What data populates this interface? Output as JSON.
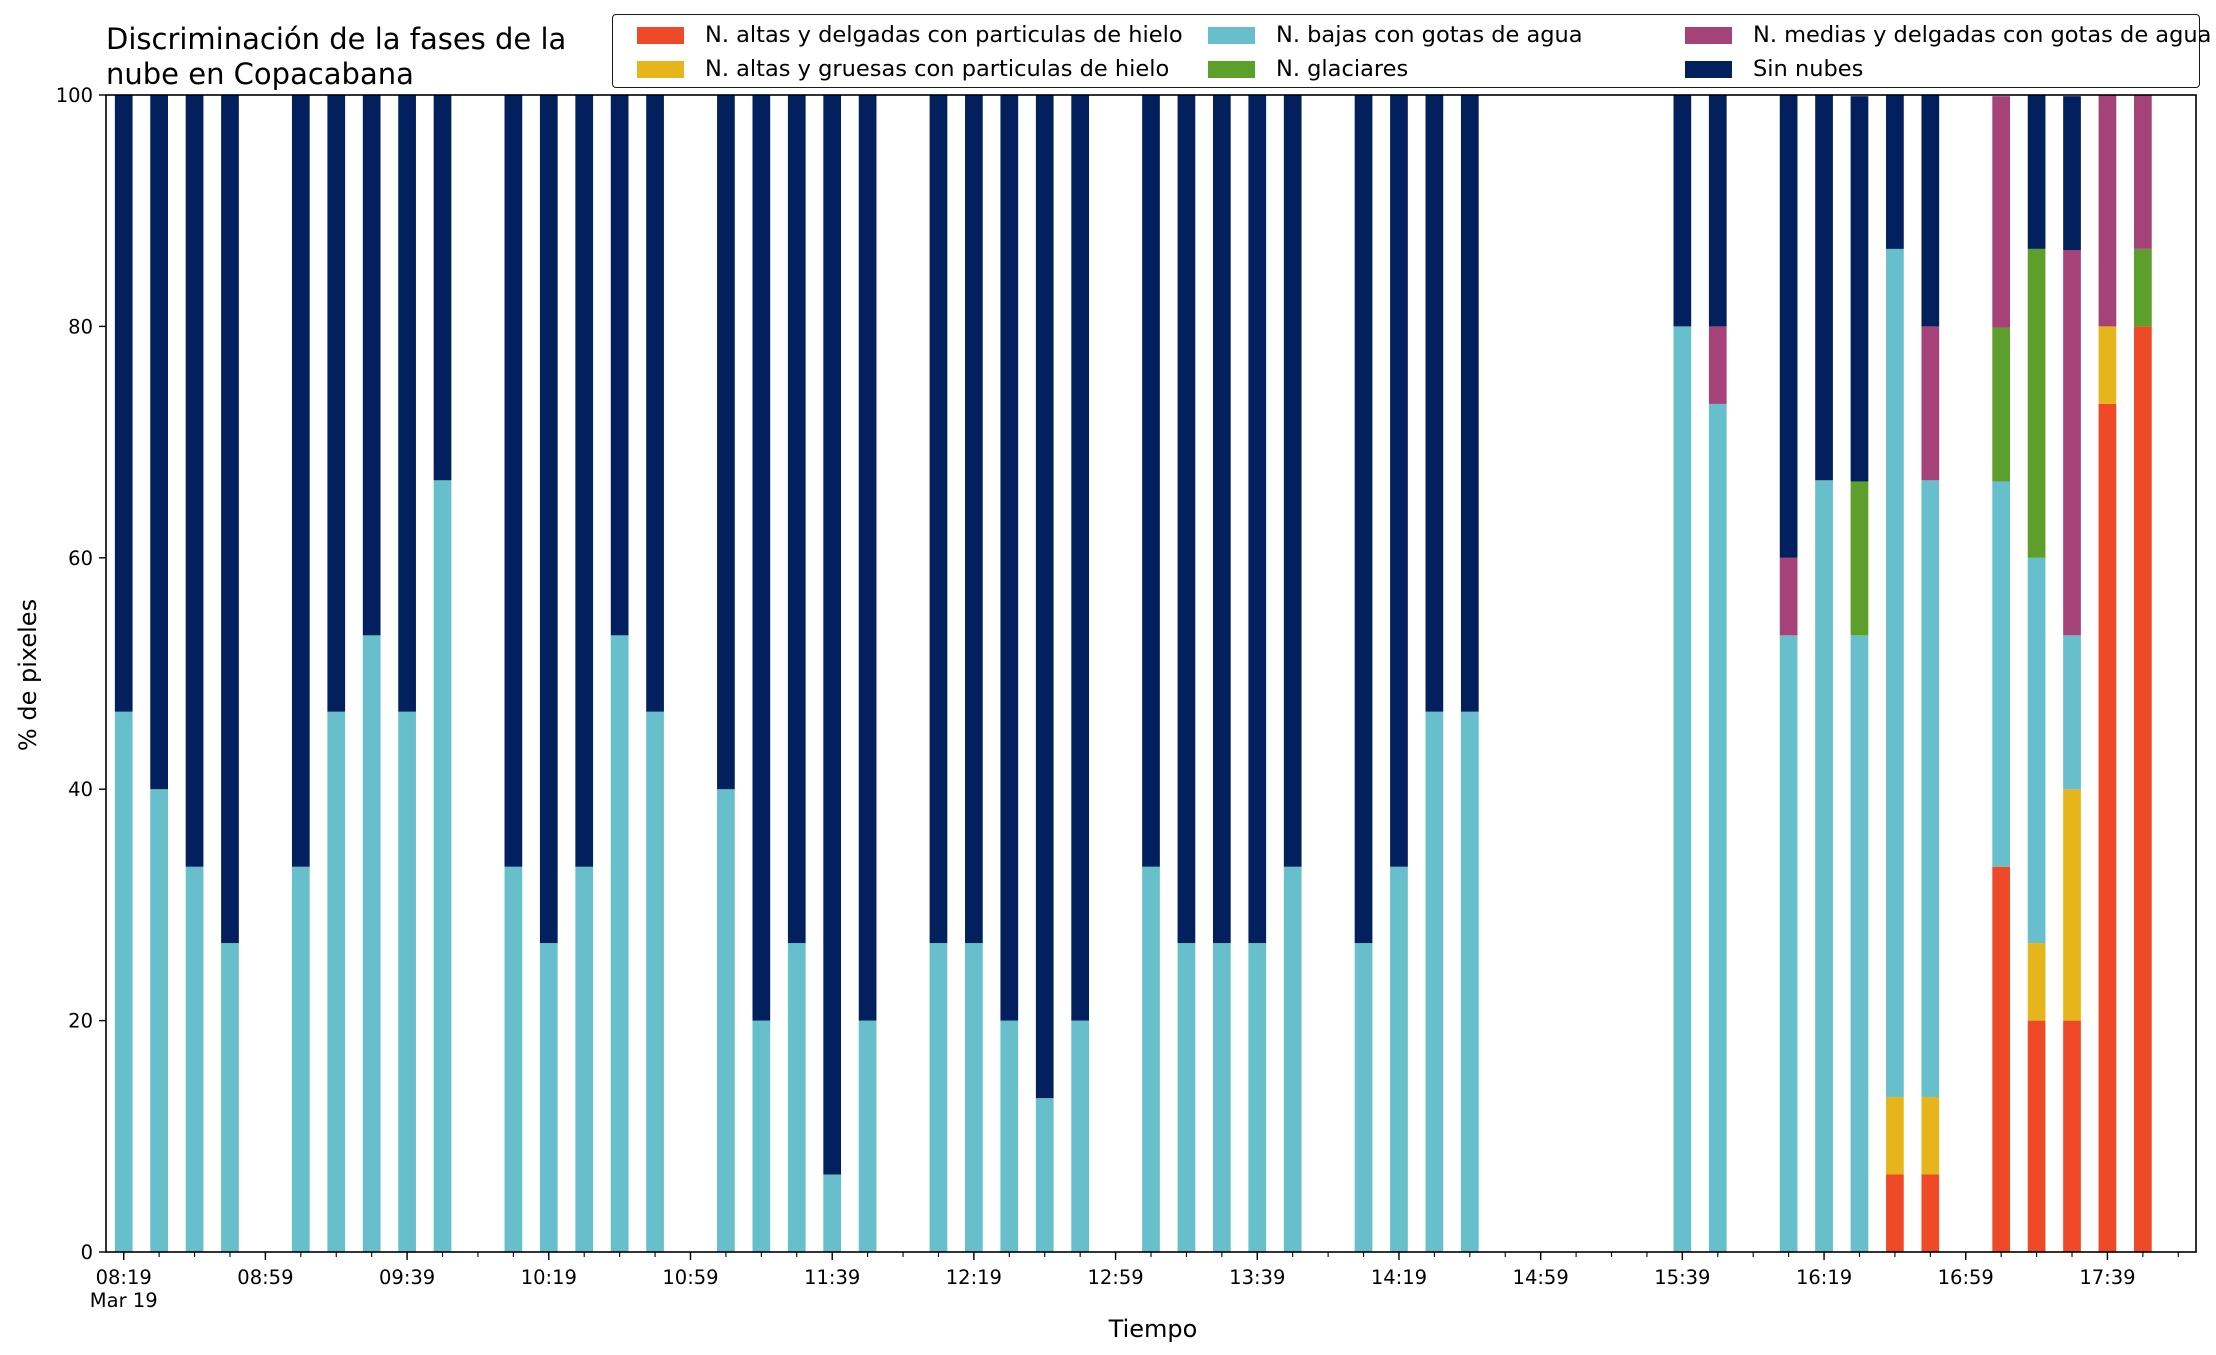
{
  "chart_data": {
    "type": "bar",
    "stacked": true,
    "title": "Discriminación de la fases de la nube en Copacabana",
    "xlabel": "Tiempo",
    "ylabel": "% de pixeles",
    "ylim": [
      0,
      100
    ],
    "yticks": [
      0,
      20,
      40,
      60,
      80,
      100
    ],
    "grid": false,
    "legend_position": "top-right, 3 columns",
    "x_start": "08:19",
    "x_end": "17:59",
    "bar_interval_minutes": 10,
    "xtick_labels": [
      "08:19",
      "08:59",
      "09:39",
      "10:19",
      "10:59",
      "11:39",
      "12:19",
      "12:59",
      "13:39",
      "14:19",
      "14:59",
      "15:39",
      "16:19",
      "16:59",
      "17:39"
    ],
    "xtick_date_label": "Mar 19",
    "categories": [
      "08:19",
      "08:29",
      "08:39",
      "08:49",
      "08:59",
      "09:09",
      "09:19",
      "09:29",
      "09:39",
      "09:49",
      "09:59",
      "10:09",
      "10:19",
      "10:29",
      "10:39",
      "10:49",
      "10:59",
      "11:09",
      "11:19",
      "11:29",
      "11:39",
      "11:49",
      "11:59",
      "12:09",
      "12:19",
      "12:29",
      "12:39",
      "12:49",
      "12:59",
      "13:09",
      "13:19",
      "13:29",
      "13:39",
      "13:49",
      "13:59",
      "14:09",
      "14:19",
      "14:29",
      "14:39",
      "14:49",
      "14:59",
      "15:09",
      "15:19",
      "15:29",
      "15:39",
      "15:49",
      "15:59",
      "16:09",
      "16:19",
      "16:29",
      "16:39",
      "16:49",
      "16:59",
      "17:09",
      "17:19",
      "17:29",
      "17:39",
      "17:49"
    ],
    "series": [
      {
        "name": "N. altas y delgadas con particulas de hielo",
        "color": "#ef4a28",
        "values": [
          0,
          0,
          0,
          0,
          null,
          0,
          0,
          0,
          0,
          0,
          null,
          0,
          0,
          0,
          0,
          0,
          null,
          0,
          0,
          0,
          0,
          0,
          null,
          0,
          0,
          0,
          0,
          0,
          null,
          0,
          0,
          0,
          0,
          0,
          null,
          0,
          0,
          0,
          0,
          0,
          null,
          null,
          null,
          null,
          0,
          0,
          null,
          0,
          0,
          0,
          6.7,
          6.7,
          null,
          33.3,
          20,
          20,
          73.3,
          80
        ]
      },
      {
        "name": "N. altas y gruesas con particulas de hielo",
        "color": "#e5b51b",
        "values": [
          0,
          0,
          0,
          0,
          null,
          0,
          0,
          0,
          0,
          0,
          null,
          0,
          0,
          0,
          0,
          0,
          null,
          0,
          0,
          0,
          0,
          0,
          null,
          0,
          0,
          0,
          0,
          0,
          null,
          0,
          0,
          0,
          0,
          0,
          null,
          0,
          0,
          0,
          0,
          0,
          null,
          null,
          null,
          null,
          0,
          0,
          null,
          0,
          0,
          0,
          6.7,
          6.7,
          null,
          0,
          6.7,
          20,
          6.7,
          0
        ]
      },
      {
        "name": "N. bajas con gotas de agua",
        "color": "#66bfca",
        "values": [
          46.7,
          40,
          33.3,
          26.7,
          null,
          33.3,
          46.7,
          53.3,
          46.7,
          66.7,
          null,
          33.3,
          26.7,
          33.3,
          53.3,
          46.7,
          null,
          40,
          20,
          26.7,
          6.7,
          20,
          null,
          26.7,
          26.7,
          20,
          13.3,
          20,
          null,
          33.3,
          26.7,
          26.7,
          26.7,
          33.3,
          null,
          26.7,
          33.3,
          46.7,
          46.7,
          null,
          null,
          null,
          null,
          null,
          80,
          73.3,
          null,
          53.3,
          66.7,
          53.3,
          73.3,
          53.3,
          null,
          33.3,
          33.3,
          13.3,
          0,
          0
        ]
      },
      {
        "name": "N. glaciares",
        "color": "#5d9f2b",
        "values": [
          0,
          0,
          0,
          0,
          null,
          0,
          0,
          0,
          0,
          0,
          null,
          0,
          0,
          0,
          0,
          0,
          null,
          0,
          0,
          0,
          0,
          0,
          null,
          0,
          0,
          0,
          0,
          0,
          null,
          0,
          0,
          0,
          0,
          0,
          null,
          0,
          0,
          0,
          0,
          0,
          null,
          null,
          null,
          null,
          0,
          0,
          null,
          0,
          0,
          13.3,
          0,
          0,
          null,
          13.3,
          26.7,
          0,
          0,
          6.7
        ]
      },
      {
        "name": "N. medias y delgadas con gotas de agua",
        "color": "#a54278",
        "values": [
          0,
          0,
          0,
          0,
          null,
          0,
          0,
          0,
          0,
          0,
          null,
          0,
          0,
          0,
          0,
          0,
          null,
          0,
          0,
          0,
          0,
          0,
          null,
          0,
          0,
          0,
          0,
          0,
          null,
          0,
          0,
          0,
          0,
          0,
          null,
          0,
          0,
          0,
          0,
          0,
          null,
          null,
          null,
          null,
          0,
          6.7,
          null,
          6.7,
          0,
          0,
          0,
          13.3,
          null,
          20,
          0,
          33.3,
          20,
          13.3
        ]
      },
      {
        "name": "Sin nubes",
        "color": "#021f5e",
        "values": [
          53.3,
          60,
          66.7,
          73.3,
          null,
          66.7,
          53.3,
          46.7,
          53.3,
          33.3,
          null,
          66.7,
          73.3,
          66.7,
          46.7,
          53.3,
          null,
          60,
          80,
          73.3,
          93.3,
          80,
          null,
          73.3,
          73.3,
          80,
          86.7,
          80,
          null,
          66.7,
          73.3,
          73.3,
          73.3,
          66.7,
          null,
          73.3,
          66.7,
          53.3,
          53.3,
          null,
          null,
          null,
          null,
          null,
          20,
          20,
          null,
          40,
          33.3,
          33.3,
          13.3,
          20,
          null,
          0,
          13.3,
          13.3,
          0,
          0
        ]
      }
    ]
  }
}
